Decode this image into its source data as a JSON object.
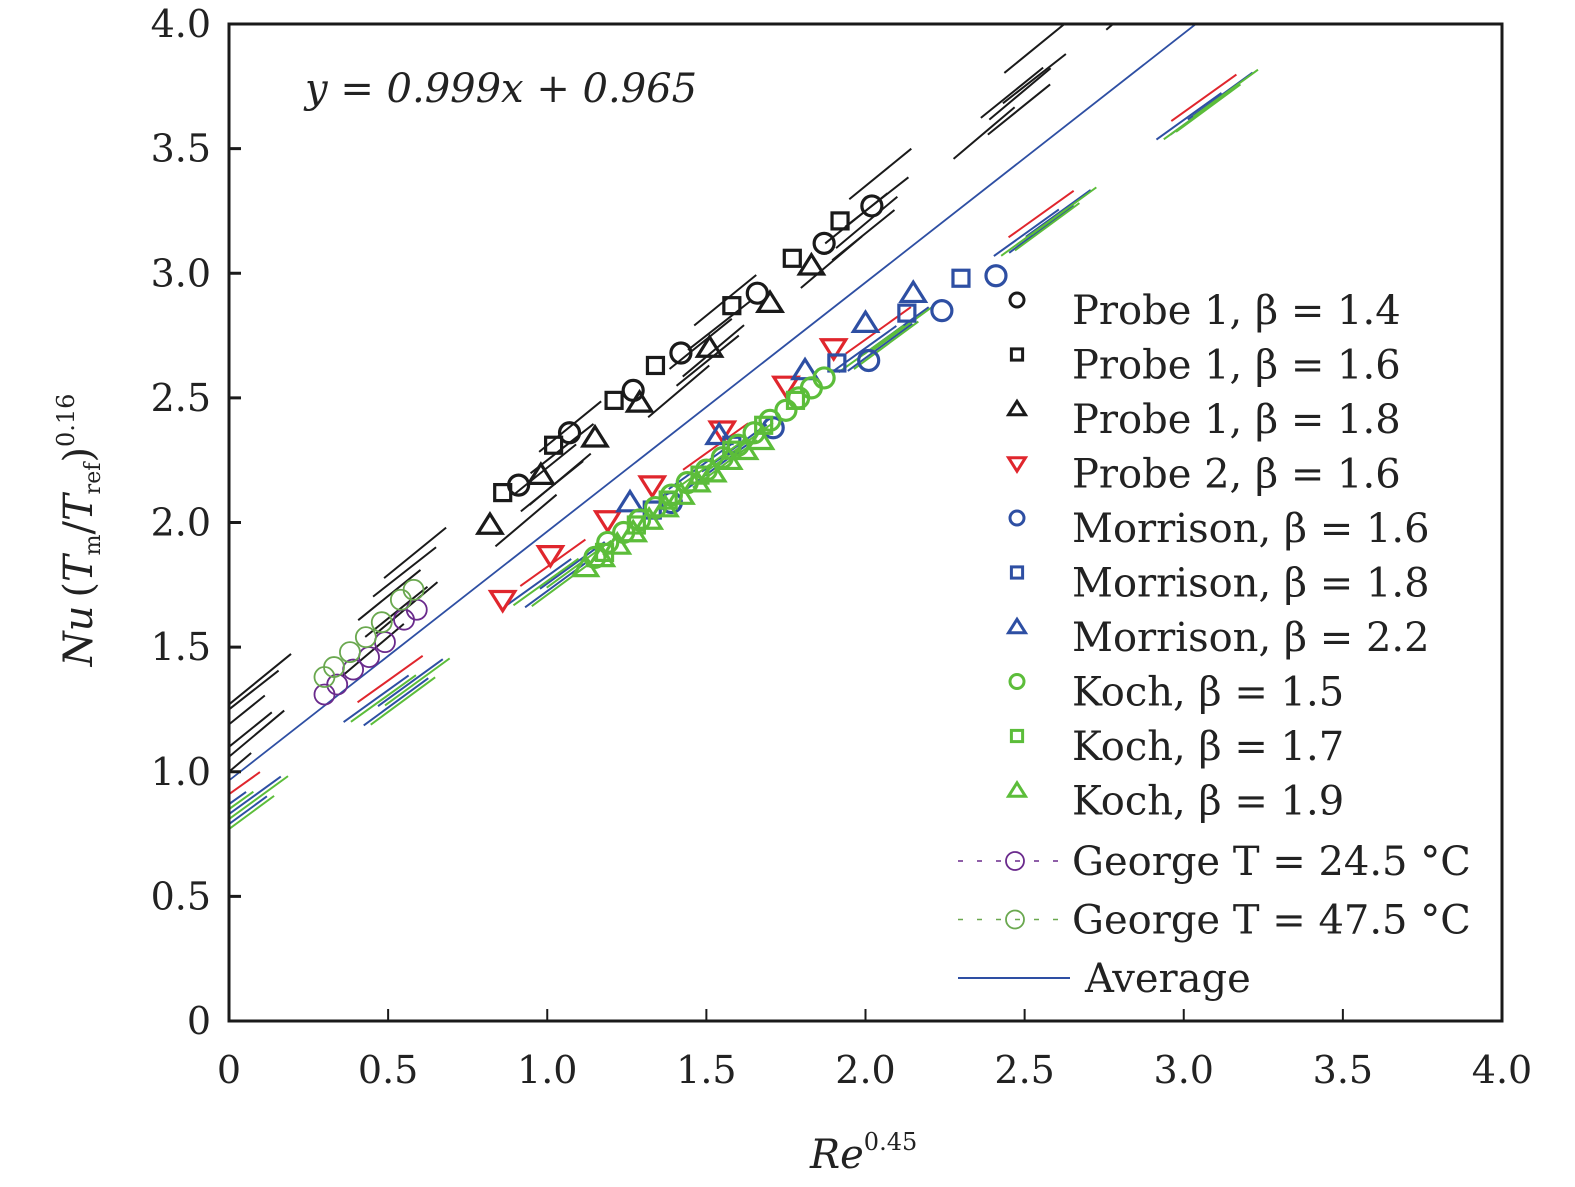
{
  "chart_data": {
    "type": "scatter",
    "title": "",
    "xlabel": "Re^0.45",
    "xlabel_base": "Re",
    "xlabel_exp": "0.45",
    "ylabel": "Nu (T_m/T_ref)^0.16",
    "ylabel_parts": {
      "nu": "Nu",
      "open": "(",
      "tm": "T",
      "tm_sub": "m",
      "slash": "/",
      "tref": "T",
      "tref_sub": "ref",
      "close": ")",
      "exp": "0.16"
    },
    "xlim": [
      0,
      4.0
    ],
    "ylim": [
      0,
      4.0
    ],
    "xticks": [
      "0",
      "0.5",
      "1.0",
      "1.5",
      "2.0",
      "2.5",
      "3.0",
      "3.5",
      "4.0"
    ],
    "yticks": [
      "0",
      "0.5",
      "1.0",
      "1.5",
      "2.0",
      "2.5",
      "3.0",
      "3.5",
      "4.0"
    ],
    "grid": false,
    "legend_position": "right",
    "annotation": "y = 0.999x + 0.965",
    "colors": {
      "black": "#1a1a1a",
      "red": "#e0262d",
      "blue": "#2e4fa3",
      "green": "#5cbd3a",
      "purple": "#6a2a8c",
      "olive_green": "#6aa84f"
    },
    "series": [
      {
        "name": "Probe 1, β = 1.4",
        "marker": "circle",
        "color": "#1a1a1a",
        "x": [
          0.91,
          1.07,
          1.27,
          1.42,
          1.66,
          1.87,
          2.02
        ],
        "y": [
          2.15,
          2.36,
          2.53,
          2.68,
          2.92,
          3.12,
          3.27
        ]
      },
      {
        "name": "Probe 1, β = 1.6",
        "marker": "square",
        "color": "#1a1a1a",
        "x": [
          0.86,
          1.02,
          1.21,
          1.34,
          1.58,
          1.77,
          1.92
        ],
        "y": [
          2.12,
          2.31,
          2.49,
          2.63,
          2.87,
          3.06,
          3.21
        ]
      },
      {
        "name": "Probe 1, β = 1.8",
        "marker": "triangle-up",
        "color": "#1a1a1a",
        "x": [
          0.82,
          0.98,
          1.15,
          1.29,
          1.51,
          1.7,
          1.83
        ],
        "y": [
          1.99,
          2.19,
          2.34,
          2.48,
          2.7,
          2.88,
          3.03
        ]
      },
      {
        "name": "Probe 2, β = 1.6",
        "marker": "triangle-down",
        "color": "#e0262d",
        "x": [
          0.86,
          1.01,
          1.19,
          1.33,
          1.55,
          1.75,
          1.9
        ],
        "y": [
          1.69,
          1.87,
          2.01,
          2.15,
          2.37,
          2.55,
          2.7
        ]
      },
      {
        "name": "Morrison, β = 1.6",
        "marker": "circle",
        "color": "#2e4fa3",
        "x": [
          1.39,
          1.71,
          2.01,
          2.24,
          2.41
        ],
        "y": [
          2.08,
          2.38,
          2.65,
          2.85,
          2.99
        ]
      },
      {
        "name": "Morrison, β = 1.8",
        "marker": "square",
        "color": "#2e4fa3",
        "x": [
          1.33,
          1.58,
          1.91,
          2.13,
          2.3
        ],
        "y": [
          2.05,
          2.31,
          2.64,
          2.84,
          2.98
        ]
      },
      {
        "name": "Morrison, β = 2.2",
        "marker": "triangle-up",
        "color": "#2e4fa3",
        "x": [
          1.26,
          1.54,
          1.81,
          2.0,
          2.15
        ],
        "y": [
          2.08,
          2.35,
          2.61,
          2.8,
          2.92
        ]
      },
      {
        "name": "Koch, β = 1.5",
        "marker": "circle",
        "color": "#5cbd3a",
        "x": [
          1.15,
          1.19,
          1.24,
          1.29,
          1.34,
          1.39,
          1.44,
          1.5,
          1.55,
          1.6,
          1.65,
          1.7,
          1.75,
          1.79,
          1.83,
          1.87
        ],
        "y": [
          1.86,
          1.92,
          1.96,
          2.01,
          2.06,
          2.11,
          2.16,
          2.21,
          2.26,
          2.31,
          2.36,
          2.41,
          2.45,
          2.5,
          2.54,
          2.58
        ]
      },
      {
        "name": "Koch, β = 1.7",
        "marker": "square",
        "color": "#5cbd3a",
        "x": [
          1.18,
          1.28,
          1.38,
          1.48,
          1.58,
          1.68,
          1.78
        ],
        "y": [
          1.88,
          1.99,
          2.09,
          2.19,
          2.29,
          2.39,
          2.49
        ]
      },
      {
        "name": "Koch, β = 1.9",
        "marker": "triangle-up",
        "color": "#5cbd3a",
        "x": [
          1.12,
          1.17,
          1.22,
          1.27,
          1.32,
          1.37,
          1.42,
          1.47,
          1.52,
          1.57,
          1.62,
          1.67
        ],
        "y": [
          1.82,
          1.86,
          1.91,
          1.96,
          2.01,
          2.06,
          2.11,
          2.16,
          2.2,
          2.25,
          2.29,
          2.33
        ]
      },
      {
        "name": "George T = 24.5 °C",
        "marker": "circle-small",
        "color": "#6a2a8c",
        "line": "dotted",
        "x": [
          0.3,
          0.34,
          0.39,
          0.44,
          0.49,
          0.55,
          0.59
        ],
        "y": [
          1.31,
          1.35,
          1.41,
          1.46,
          1.52,
          1.61,
          1.65
        ]
      },
      {
        "name": "George T = 47.5 °C",
        "marker": "circle-small",
        "color": "#6aa84f",
        "line": "dotted",
        "x": [
          0.3,
          0.33,
          0.38,
          0.43,
          0.48,
          0.54,
          0.58
        ],
        "y": [
          1.38,
          1.42,
          1.48,
          1.54,
          1.6,
          1.69,
          1.73
        ]
      },
      {
        "name": "Average",
        "marker": "none",
        "color": "#2e4fa3",
        "line": "solid",
        "fit": {
          "slope": 0.999,
          "intercept": 0.965
        }
      }
    ],
    "fit_lines": [
      {
        "color": "#1a1a1a",
        "slope": 1.04,
        "intercept": 1.27,
        "style": "dashed"
      },
      {
        "color": "#1a1a1a",
        "slope": 1.0,
        "intercept": 1.25,
        "style": "dashed"
      },
      {
        "color": "#1a1a1a",
        "slope": 1.03,
        "intercept": 1.19,
        "style": "dashed"
      },
      {
        "color": "#1a1a1a",
        "slope": 1.08,
        "intercept": 1.0,
        "style": "dashed"
      },
      {
        "color": "#1a1a1a",
        "slope": 1.07,
        "intercept": 1.06,
        "style": "dashed"
      },
      {
        "color": "#1a1a1a",
        "slope": 1.03,
        "intercept": 1.1,
        "style": "dashed"
      },
      {
        "color": "#e0262d",
        "slope": 0.912,
        "intercept": 0.91,
        "style": "dashed"
      },
      {
        "color": "#2e4fa3",
        "slope": 0.915,
        "intercept": 0.87,
        "style": "dashed"
      },
      {
        "color": "#2e4fa3",
        "slope": 0.925,
        "intercept": 0.83,
        "style": "dashed"
      },
      {
        "color": "#2e4fa3",
        "slope": 0.935,
        "intercept": 0.79,
        "style": "dashed"
      },
      {
        "color": "#5cbd3a",
        "slope": 0.915,
        "intercept": 0.85,
        "style": "dashed"
      },
      {
        "color": "#5cbd3a",
        "slope": 0.93,
        "intercept": 0.81,
        "style": "dashed"
      },
      {
        "color": "#5cbd3a",
        "slope": 0.94,
        "intercept": 0.77,
        "style": "dashed"
      }
    ]
  }
}
